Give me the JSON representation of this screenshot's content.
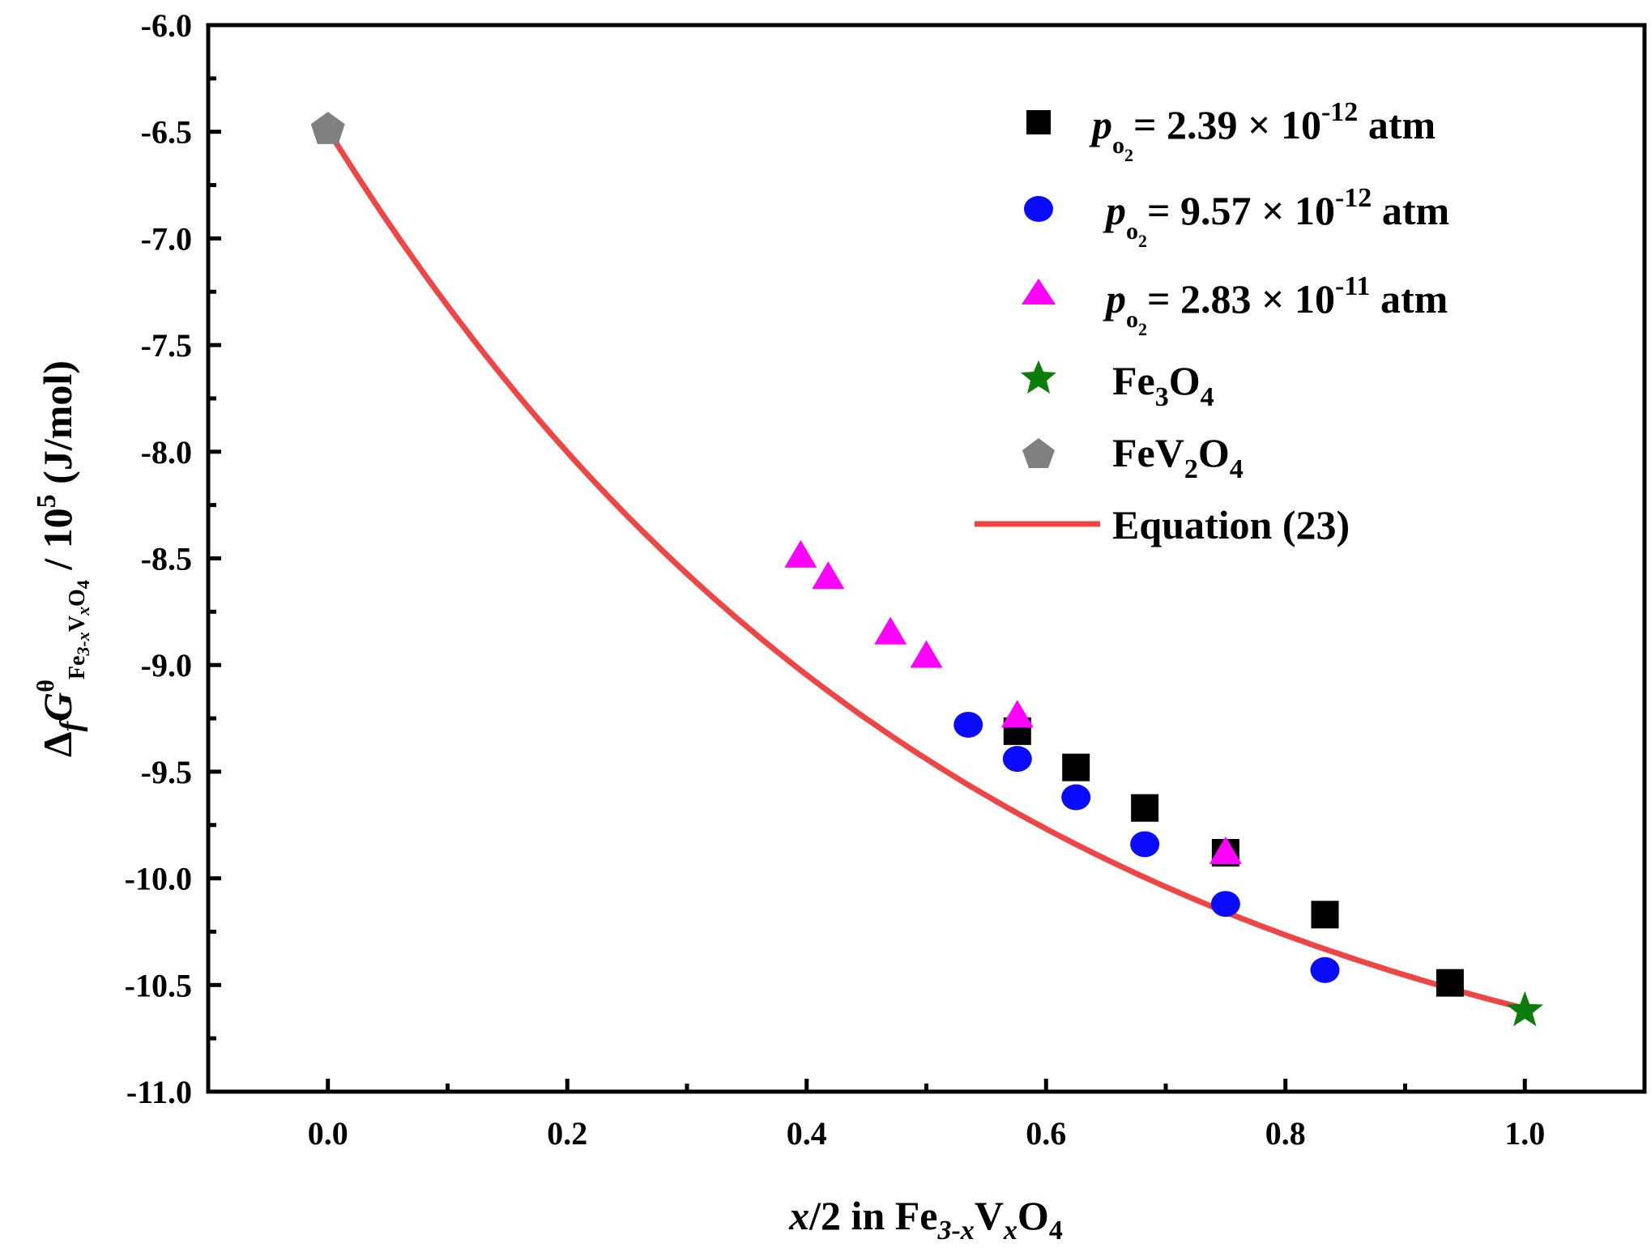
{
  "chart_data": {
    "type": "scatter",
    "xlim": [
      -0.1,
      1.1
    ],
    "ylim": [
      -11.0,
      -6.0
    ],
    "x_ticks": [
      "0.0",
      "0.2",
      "0.4",
      "0.6",
      "0.8",
      "1.0"
    ],
    "y_ticks": [
      "-6.0",
      "-6.5",
      "-7.0",
      "-7.5",
      "-8.0",
      "-8.5",
      "-9.0",
      "-9.5",
      "-10.0",
      "-10.5",
      "-11.0"
    ],
    "xlabel": {
      "x": "x",
      "rest": "/2 in Fe",
      "sub1": "3-x",
      "v": "V",
      "sub2": "x",
      "o": "O",
      "sub3": "4"
    },
    "ylabel": {
      "delta": "Δ",
      "f": "f",
      "g": "G",
      "sup": "θ",
      "sub_fe": "Fe",
      "sub_fe_idx": "3-x",
      "sub_v": "V",
      "sub_v_idx": "x",
      "sub_o": "O",
      "sub_o_idx": "4",
      "slash": " / 10",
      "exp": "5",
      "units": " (J/mol)"
    },
    "series": [
      {
        "name": "p_O2 = 2.39 × 10^-12 atm",
        "marker": "square",
        "color": "#000000",
        "legend": {
          "p": "p",
          "sub": "o",
          "subsub": "2",
          "eq": "= 2.39 × 10",
          "exp": "-12",
          "unit": " atm"
        },
        "x": [
          0.576,
          0.625,
          0.6825,
          0.75,
          0.833,
          0.9375
        ],
        "y": [
          -9.31,
          -9.48,
          -9.67,
          -9.88,
          -10.17,
          -10.49
        ]
      },
      {
        "name": "p_O2 = 9.57 × 10^-12 atm",
        "marker": "circle",
        "color": "#0a0aff",
        "legend": {
          "p": "p",
          "sub": "o",
          "subsub": "2",
          "eq": "= 9.57 × 10",
          "exp": "-12",
          "unit": " atm"
        },
        "x": [
          0.535,
          0.576,
          0.625,
          0.6825,
          0.75,
          0.833
        ],
        "y": [
          -9.28,
          -9.44,
          -9.62,
          -9.84,
          -10.12,
          -10.43
        ]
      },
      {
        "name": "p_O2 = 2.83 × 10^-11 atm",
        "marker": "triangle",
        "color": "#ff00ff",
        "legend": {
          "p": "p",
          "sub": "o",
          "subsub": "2",
          "eq": "= 2.83 × 10",
          "exp": "-11",
          "unit": " atm"
        },
        "x": [
          0.395,
          0.418,
          0.47,
          0.5,
          0.576,
          0.75
        ],
        "y": [
          -8.49,
          -8.59,
          -8.85,
          -8.96,
          -9.24,
          -9.88
        ]
      },
      {
        "name": "Fe3O4",
        "marker": "star",
        "color": "#0a7d0a",
        "legend": {
          "a": "Fe",
          "a_sub": "3",
          "b": "O",
          "b_sub": "4"
        },
        "x": [
          1.0
        ],
        "y": [
          -10.62
        ]
      },
      {
        "name": "FeV2O4",
        "marker": "pentagon",
        "color": "#808080",
        "legend": {
          "a": "FeV",
          "a_sub": "2",
          "b": "O",
          "b_sub": "4"
        },
        "x": [
          0.0
        ],
        "y": [
          -6.49
        ]
      }
    ],
    "fit_line": {
      "name": "Equation (23)",
      "color": "#f04545",
      "x_range": [
        0.0,
        1.0
      ],
      "y_start": -6.49,
      "y_end": -10.61,
      "curvature": 1.85
    }
  }
}
